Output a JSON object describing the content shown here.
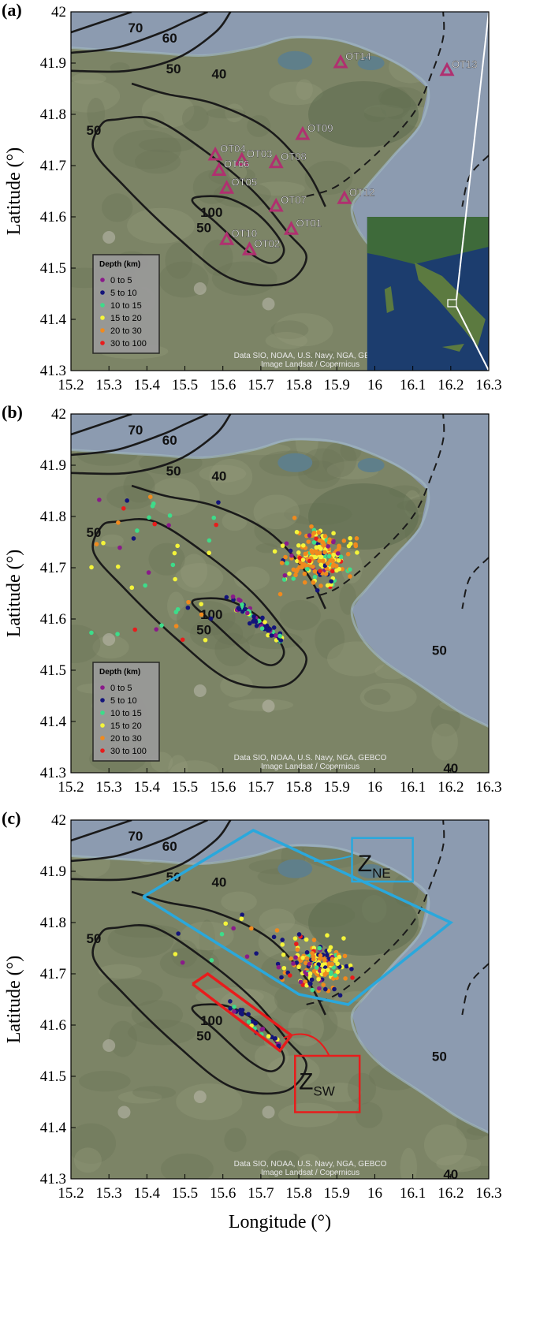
{
  "panels": [
    {
      "label": "(a)",
      "show_stations": true,
      "show_events": false,
      "show_legend": true,
      "show_zones": false,
      "show_inset": true,
      "show_xlabel": false
    },
    {
      "label": "(b)",
      "show_stations": false,
      "show_events": true,
      "events_set": "all",
      "show_legend": true,
      "show_zones": false,
      "show_inset": false,
      "show_xlabel": false
    },
    {
      "label": "(c)",
      "show_stations": false,
      "show_events": true,
      "events_set": "zones",
      "show_legend": false,
      "show_zones": true,
      "show_inset": false,
      "show_xlabel": true
    }
  ],
  "axes": {
    "x_ticks": [
      "15.2",
      "15.3",
      "15.4",
      "15.5",
      "15.6",
      "15.7",
      "15.8",
      "15.9",
      "16",
      "16.1",
      "16.2",
      "16.3"
    ],
    "y_ticks": [
      "41.3",
      "41.4",
      "41.5",
      "41.6",
      "41.7",
      "41.8",
      "41.9",
      "42"
    ],
    "xlim": [
      15.2,
      16.3
    ],
    "ylim": [
      41.3,
      42
    ],
    "ylabel": "Latitude (°)",
    "xlabel": "Longitude (°)"
  },
  "attribution": [
    "Data SIO, NOAA, U.S. Navy, NGA, GEBCO",
    "Image Landsat / Copernicus"
  ],
  "legend": {
    "title": "Depth (km)",
    "items": [
      {
        "label": "0  to  5",
        "color": "#8a1a8a"
      },
      {
        "label": "5  to  10",
        "color": "#14147a"
      },
      {
        "label": "10  to  15",
        "color": "#3ddc8a"
      },
      {
        "label": "15  to  20",
        "color": "#f4f43a"
      },
      {
        "label": "20  to  30",
        "color": "#f08a1e"
      },
      {
        "label": "30  to  100",
        "color": "#e81c1c"
      }
    ]
  },
  "contour_labels": [
    {
      "text": "70",
      "lon": 15.37,
      "lat": 41.96
    },
    {
      "text": "60",
      "lon": 15.46,
      "lat": 41.94
    },
    {
      "text": "50",
      "lon": 15.47,
      "lat": 41.88
    },
    {
      "text": "40",
      "lon": 15.59,
      "lat": 41.87
    },
    {
      "text": "50",
      "lon": 15.26,
      "lat": 41.76
    },
    {
      "text": "100",
      "lon": 15.57,
      "lat": 41.6
    },
    {
      "text": "50",
      "lon": 15.55,
      "lat": 41.57
    }
  ],
  "contour_labels_bc": [
    {
      "text": "50",
      "lon": 16.17,
      "lat": 41.53
    },
    {
      "text": "40",
      "lon": 16.2,
      "lat": 41.3
    }
  ],
  "stations": [
    {
      "name": "OT14",
      "lon": 15.91,
      "lat": 41.9
    },
    {
      "name": "OT13",
      "lon": 16.19,
      "lat": 41.885
    },
    {
      "name": "OT09",
      "lon": 15.81,
      "lat": 41.76
    },
    {
      "name": "OT04",
      "lon": 15.58,
      "lat": 41.72
    },
    {
      "name": "OT03",
      "lon": 15.65,
      "lat": 41.71
    },
    {
      "name": "OT08",
      "lon": 15.74,
      "lat": 41.705
    },
    {
      "name": "OT06",
      "lon": 15.59,
      "lat": 41.69
    },
    {
      "name": "OT05",
      "lon": 15.61,
      "lat": 41.655
    },
    {
      "name": "OT07",
      "lon": 15.74,
      "lat": 41.62
    },
    {
      "name": "OT12",
      "lon": 15.92,
      "lat": 41.635
    },
    {
      "name": "OT01",
      "lon": 15.78,
      "lat": 41.575
    },
    {
      "name": "OT10",
      "lon": 15.61,
      "lat": 41.555
    },
    {
      "name": "OT02",
      "lon": 15.67,
      "lat": 41.535
    }
  ],
  "zones": [
    {
      "name": "Z",
      "sub": "NE",
      "color": "#2aa8dc"
    },
    {
      "name": "Z",
      "sub": "SW",
      "color": "#e81c1c"
    }
  ],
  "colors": {
    "sea": "#8c9bb0",
    "land": "#7c8466",
    "contour": "#1a1a1a",
    "station": "#b03070",
    "frame": "#000000"
  }
}
